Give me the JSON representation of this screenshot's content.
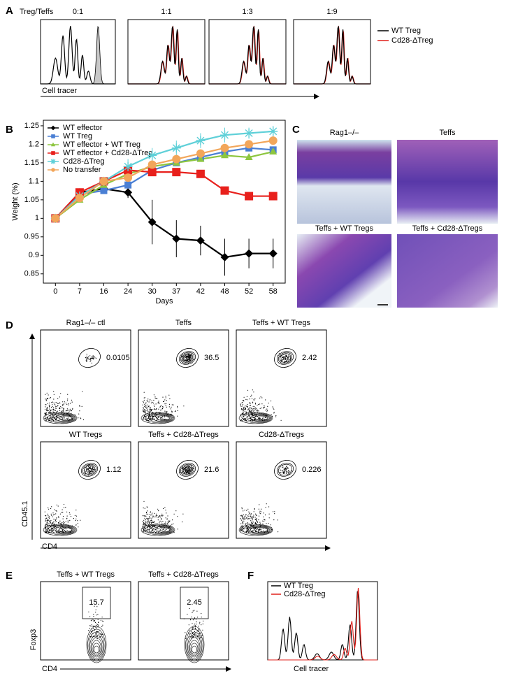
{
  "panel_a": {
    "letter": "A",
    "label": "Treg/Teffs",
    "ratios": [
      "0:1",
      "1:1",
      "1:3",
      "1:9"
    ],
    "legend": [
      {
        "name": "WT Treg",
        "color": "#000000"
      },
      {
        "name": "Cd28-ΔTreg",
        "color": "#e0201b"
      }
    ],
    "xlabel": "Cell tracer"
  },
  "chart_data": {
    "letter": "B",
    "type": "line",
    "ylabel": "Weight (%)",
    "xlabel": "Days",
    "categories": [
      "0",
      "7",
      "16",
      "24",
      "30",
      "37",
      "42",
      "48",
      "52",
      "58"
    ],
    "ylim": [
      0.825,
      1.265
    ],
    "yticks": [
      0.85,
      0.9,
      0.95,
      1,
      1.05,
      1.1,
      1.15,
      1.2,
      1.25
    ],
    "series": [
      {
        "name": "WT effector",
        "color": "#000000",
        "marker": "diamond",
        "values": [
          1,
          1.07,
          1.08,
          1.07,
          0.99,
          0.945,
          0.94,
          0.895,
          0.905,
          0.905
        ],
        "errors": [
          0,
          0.01,
          0.01,
          0.015,
          0.06,
          0.05,
          0.04,
          0.05,
          0.04,
          0.04
        ]
      },
      {
        "name": "WT Treg",
        "color": "#4a7fd4",
        "marker": "square",
        "values": [
          1,
          1.065,
          1.075,
          1.09,
          1.13,
          1.15,
          1.165,
          1.18,
          1.19,
          1.185
        ]
      },
      {
        "name": "WT effector + WT Treg",
        "color": "#8dc63f",
        "marker": "triangle",
        "values": [
          1,
          1.05,
          1.09,
          1.12,
          1.14,
          1.15,
          1.16,
          1.17,
          1.165,
          1.18
        ]
      },
      {
        "name": "WT effector + Cd28-ΔTreg",
        "color": "#e8201c",
        "marker": "square",
        "values": [
          1,
          1.07,
          1.1,
          1.13,
          1.125,
          1.125,
          1.12,
          1.075,
          1.06,
          1.06
        ]
      },
      {
        "name": "Cd28-ΔTreg",
        "color": "#5fd0d8",
        "marker": "star",
        "values": [
          1,
          1.06,
          1.1,
          1.14,
          1.17,
          1.19,
          1.21,
          1.225,
          1.23,
          1.235
        ],
        "errors": [
          0,
          0.01,
          0.01,
          0.02,
          0.02,
          0.02,
          0.02,
          0.02,
          0.015,
          0.015
        ]
      },
      {
        "name": "No transfer",
        "color": "#f2a65a",
        "marker": "circle",
        "values": [
          1,
          1.055,
          1.1,
          1.11,
          1.145,
          1.16,
          1.175,
          1.19,
          1.2,
          1.21
        ]
      }
    ]
  },
  "panel_c": {
    "letter": "C",
    "titles": [
      "Rag1–/–",
      "Teffs",
      "Teffs + WT Tregs",
      "Teffs + Cd28-ΔTregs"
    ]
  },
  "panel_d": {
    "letter": "D",
    "plots": [
      {
        "title": "Rag1–/– ctl",
        "value": 0.0105
      },
      {
        "title": "Teffs",
        "value": 36.5
      },
      {
        "title": "Teffs + WT Tregs",
        "value": 2.42
      },
      {
        "title": "WT Tregs",
        "value": 1.12
      },
      {
        "title": "Teffs + Cd28-ΔTregs",
        "value": 21.6
      },
      {
        "title": "Cd28-ΔTregs",
        "value": 0.226
      }
    ],
    "ylabel": "CD45.1",
    "xlabel": "CD4"
  },
  "panel_e": {
    "letter": "E",
    "plots": [
      {
        "title": "Teffs + WT Tregs",
        "value": 15.7
      },
      {
        "title": "Teffs + Cd28-ΔTregs",
        "value": 2.45
      }
    ],
    "ylabel": "Foxp3",
    "xlabel": "CD4"
  },
  "panel_f": {
    "letter": "F",
    "legend": [
      {
        "name": "WT Treg",
        "color": "#000000"
      },
      {
        "name": "Cd28-ΔTreg",
        "color": "#e0201b"
      }
    ],
    "xlabel": "Cell tracer"
  }
}
